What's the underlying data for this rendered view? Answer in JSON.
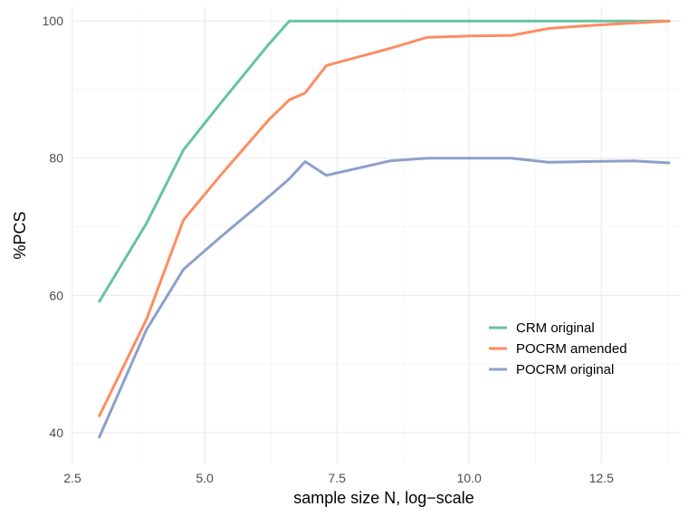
{
  "chart_data": {
    "type": "line",
    "title": "",
    "xlabel": "sample size N, log−scale",
    "ylabel": "%PCS",
    "xlim": [
      2.5,
      14.0
    ],
    "ylim": [
      35.5,
      102.0
    ],
    "x_ticks": [
      2.5,
      5.0,
      7.5,
      10.0,
      12.5
    ],
    "x_tick_labels": [
      "2.5",
      "5.0",
      "7.5",
      "10.0",
      "12.5"
    ],
    "y_ticks": [
      40,
      60,
      80,
      100
    ],
    "y_tick_labels": [
      "40",
      "60",
      "80",
      "100"
    ],
    "grid": true,
    "legend_position": "bottom-right",
    "series": [
      {
        "name": "CRM original",
        "color": "#66c2a5",
        "x": [
          3.0,
          3.9,
          4.6,
          5.3,
          6.2,
          6.6,
          6.9,
          7.3,
          8.5,
          9.2,
          10.0,
          10.8,
          11.5,
          12.2,
          13.1,
          13.8
        ],
        "y": [
          59.0,
          70.5,
          81.2,
          88.0,
          96.5,
          100.0,
          100.0,
          100.0,
          100.0,
          100.0,
          100.0,
          100.0,
          100.0,
          100.0,
          100.0,
          100.0
        ]
      },
      {
        "name": "POCRM amended",
        "color": "#fc8d62",
        "x": [
          3.0,
          3.9,
          4.6,
          5.3,
          6.2,
          6.6,
          6.9,
          7.3,
          8.5,
          9.2,
          10.0,
          10.8,
          11.5,
          12.2,
          13.1,
          13.8
        ],
        "y": [
          42.3,
          56.5,
          71.0,
          77.5,
          85.5,
          88.5,
          89.5,
          93.5,
          96.0,
          97.6,
          97.8,
          97.9,
          98.9,
          99.3,
          99.7,
          100.0
        ]
      },
      {
        "name": "POCRM original",
        "color": "#8da0cb",
        "x": [
          3.0,
          3.9,
          4.6,
          5.3,
          6.2,
          6.6,
          6.9,
          7.3,
          8.5,
          9.2,
          10.0,
          10.8,
          11.5,
          12.2,
          13.1,
          13.8
        ],
        "y": [
          39.2,
          55.0,
          63.8,
          68.5,
          74.3,
          77.0,
          79.5,
          77.5,
          79.6,
          80.0,
          80.0,
          80.0,
          79.4,
          79.5,
          79.6,
          79.3
        ]
      }
    ]
  }
}
